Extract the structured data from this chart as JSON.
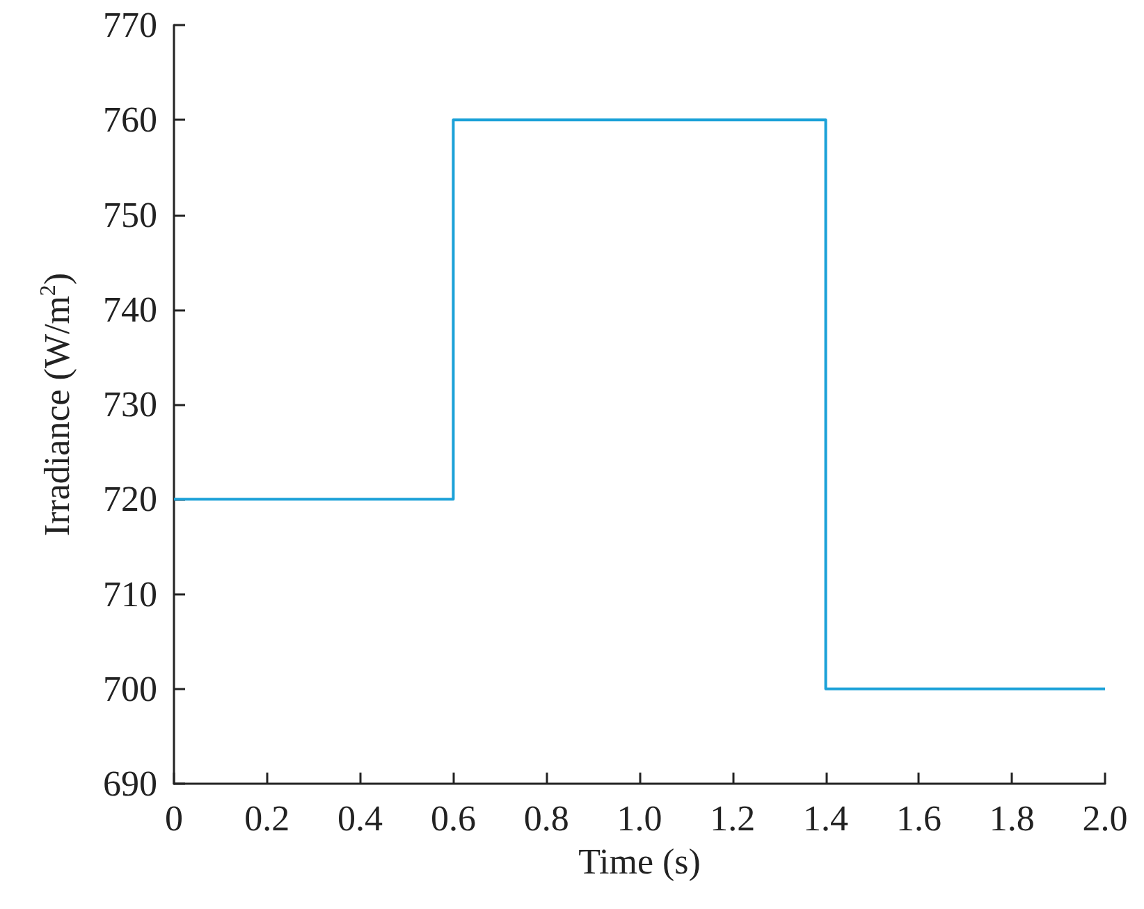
{
  "chart_data": {
    "type": "step",
    "xlabel": "Time (s)",
    "ylabel": "Irradiance (W/m$^{2}$)",
    "x": [
      0,
      0.6,
      1.4,
      2.0
    ],
    "series": [
      {
        "color": "#1ba1d8",
        "values": [
          720,
          760,
          700,
          700
        ]
      }
    ],
    "xlim": [
      0,
      2
    ],
    "xticks": [
      0,
      0.2,
      0.4,
      0.6,
      0.8,
      {
        "value": 1,
        "label": "1.0"
      },
      1.2,
      1.4,
      1.6,
      1.8,
      {
        "value": 2,
        "label": "2.0"
      }
    ],
    "ylim": [
      690,
      770
    ],
    "yticks": [
      690,
      700,
      710,
      720,
      730,
      740,
      750,
      760,
      770
    ],
    "grid": false
  }
}
